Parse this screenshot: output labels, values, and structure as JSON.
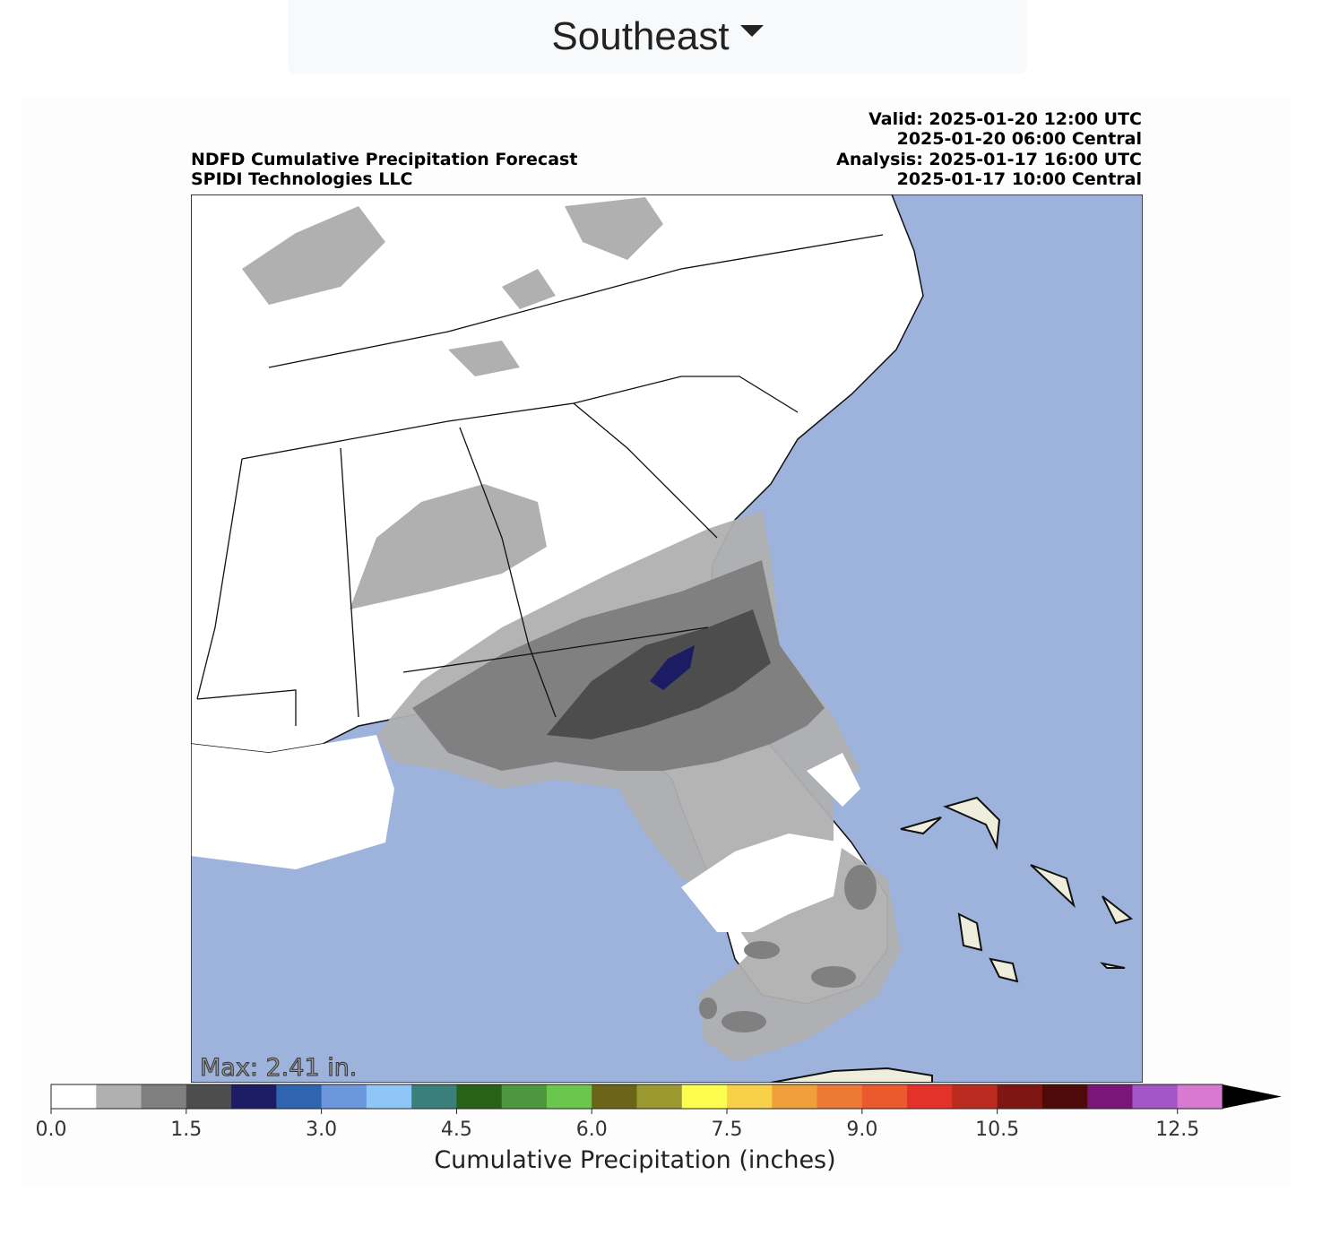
{
  "header": {
    "region": "Southeast"
  },
  "map": {
    "title_lines": [
      "NDFD Cumulative Precipitation Forecast",
      "SPIDI Technologies LLC"
    ],
    "time_lines": [
      "Valid: 2025-01-20 12:00 UTC",
      "2025-01-20 06:00 Central",
      "Analysis: 2025-01-17 16:00 UTC",
      "2025-01-17 10:00 Central"
    ],
    "max_label": "Max: 2.41 in."
  },
  "colorbar": {
    "label": "Cumulative Precipitation (inches)",
    "lim": [
      0,
      13
    ],
    "ticks": [
      {
        "value": 0,
        "label": "0.0"
      },
      1.5,
      {
        "value": 3,
        "label": "3.0"
      },
      4.5,
      {
        "value": 6,
        "label": "6.0"
      },
      7.5,
      {
        "value": 9,
        "label": "9.0"
      },
      10.5,
      12.5
    ],
    "colors": [
      "#ffffff",
      "#b0b0b0",
      "#808080",
      "#4d4d4d",
      "#1c1c64",
      "#2f64b0",
      "#6d97dd",
      "#8fc5f7",
      "#3a7f7a",
      "#2a6118",
      "#4e9640",
      "#6bc64c",
      "#6a6518",
      "#9a9a30",
      "#fdfd50",
      "#f8d04a",
      "#f0a03a",
      "#ec7a34",
      "#eb5a2c",
      "#e2322a",
      "#bb2a1e",
      "#7e1714",
      "#4e0a08",
      "#7b1578",
      "#a455c8",
      "#d77ad0"
    ],
    "extend_color": "#000000"
  }
}
